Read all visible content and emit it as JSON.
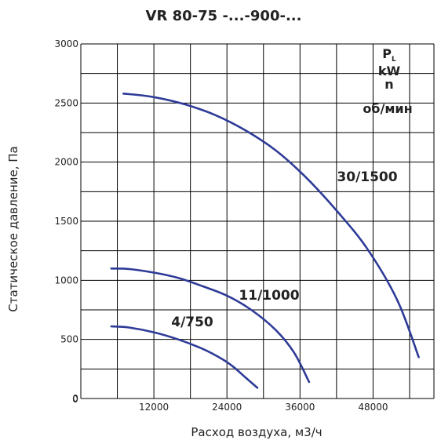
{
  "chart_data": {
    "type": "line",
    "title": "VR 80-75 -...-900-...",
    "xlabel": "Расход воздуха, м3/ч",
    "ylabel": "Статическое давление, Па",
    "xlim": [
      0,
      58000
    ],
    "ylim": [
      0,
      3000
    ],
    "xticks": [
      0,
      12000,
      24000,
      36000,
      48000
    ],
    "yticks": [
      0,
      500,
      1000,
      1500,
      2000,
      2500,
      3000
    ],
    "x_tick_labels": [
      "0",
      "12000",
      "24000",
      "36000",
      "48000"
    ],
    "y_tick_labels": [
      "0",
      "500",
      "1000",
      "1500",
      "2000",
      "2500",
      "3000"
    ],
    "grid": true,
    "legend": {
      "placement": "top-right",
      "lines": [
        {
          "main": "P",
          "sub": "L"
        },
        {
          "main": "kW",
          "sub": ""
        },
        {
          "main": "n",
          "sub": ""
        },
        {
          "main": "об/мин",
          "sub": ""
        }
      ]
    },
    "series": [
      {
        "name": "30/1500",
        "x": [
          7000,
          12000,
          17000,
          22000,
          27000,
          32000,
          37000,
          42000,
          47000,
          52000,
          55500
        ],
        "y": [
          2580,
          2550,
          2490,
          2400,
          2270,
          2100,
          1870,
          1590,
          1270,
          830,
          350
        ]
      },
      {
        "name": "11/1000",
        "x": [
          5000,
          8000,
          12000,
          16000,
          20000,
          24000,
          28000,
          32000,
          35000,
          37500
        ],
        "y": [
          1100,
          1095,
          1065,
          1020,
          950,
          870,
          750,
          580,
          390,
          140
        ]
      },
      {
        "name": "4/750",
        "x": [
          5000,
          8000,
          12000,
          16000,
          20000,
          23000,
          25000,
          27000,
          29000
        ],
        "y": [
          610,
          600,
          560,
          500,
          420,
          340,
          270,
          180,
          90
        ]
      }
    ],
    "color": "#2e3b97"
  }
}
